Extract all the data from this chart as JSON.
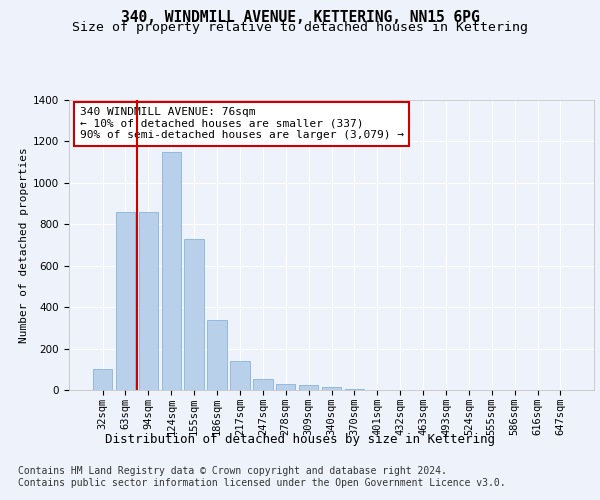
{
  "title": "340, WINDMILL AVENUE, KETTERING, NN15 6PG",
  "subtitle": "Size of property relative to detached houses in Kettering",
  "xlabel": "Distribution of detached houses by size in Kettering",
  "ylabel": "Number of detached properties",
  "categories": [
    "32sqm",
    "63sqm",
    "94sqm",
    "124sqm",
    "155sqm",
    "186sqm",
    "217sqm",
    "247sqm",
    "278sqm",
    "309sqm",
    "340sqm",
    "370sqm",
    "401sqm",
    "432sqm",
    "463sqm",
    "493sqm",
    "524sqm",
    "555sqm",
    "586sqm",
    "616sqm",
    "647sqm"
  ],
  "values": [
    100,
    860,
    860,
    1150,
    730,
    340,
    140,
    55,
    30,
    22,
    15,
    5,
    2,
    1,
    0,
    0,
    0,
    0,
    0,
    0,
    0
  ],
  "bar_color": "#b8d0ea",
  "bar_edge_color": "#7aacd6",
  "ylim": [
    0,
    1400
  ],
  "yticks": [
    0,
    200,
    400,
    600,
    800,
    1000,
    1200,
    1400
  ],
  "vline_color": "#cc0000",
  "vline_x_index": 1.5,
  "annotation_text": "340 WINDMILL AVENUE: 76sqm\n← 10% of detached houses are smaller (337)\n90% of semi-detached houses are larger (3,079) →",
  "footer_line1": "Contains HM Land Registry data © Crown copyright and database right 2024.",
  "footer_line2": "Contains public sector information licensed under the Open Government Licence v3.0.",
  "background_color": "#eef2fb",
  "plot_background": "#eef2fb",
  "grid_color": "#ffffff",
  "title_fontsize": 10.5,
  "subtitle_fontsize": 9.5,
  "xlabel_fontsize": 9,
  "ylabel_fontsize": 8,
  "tick_fontsize": 7.5,
  "annotation_fontsize": 8,
  "footer_fontsize": 7
}
